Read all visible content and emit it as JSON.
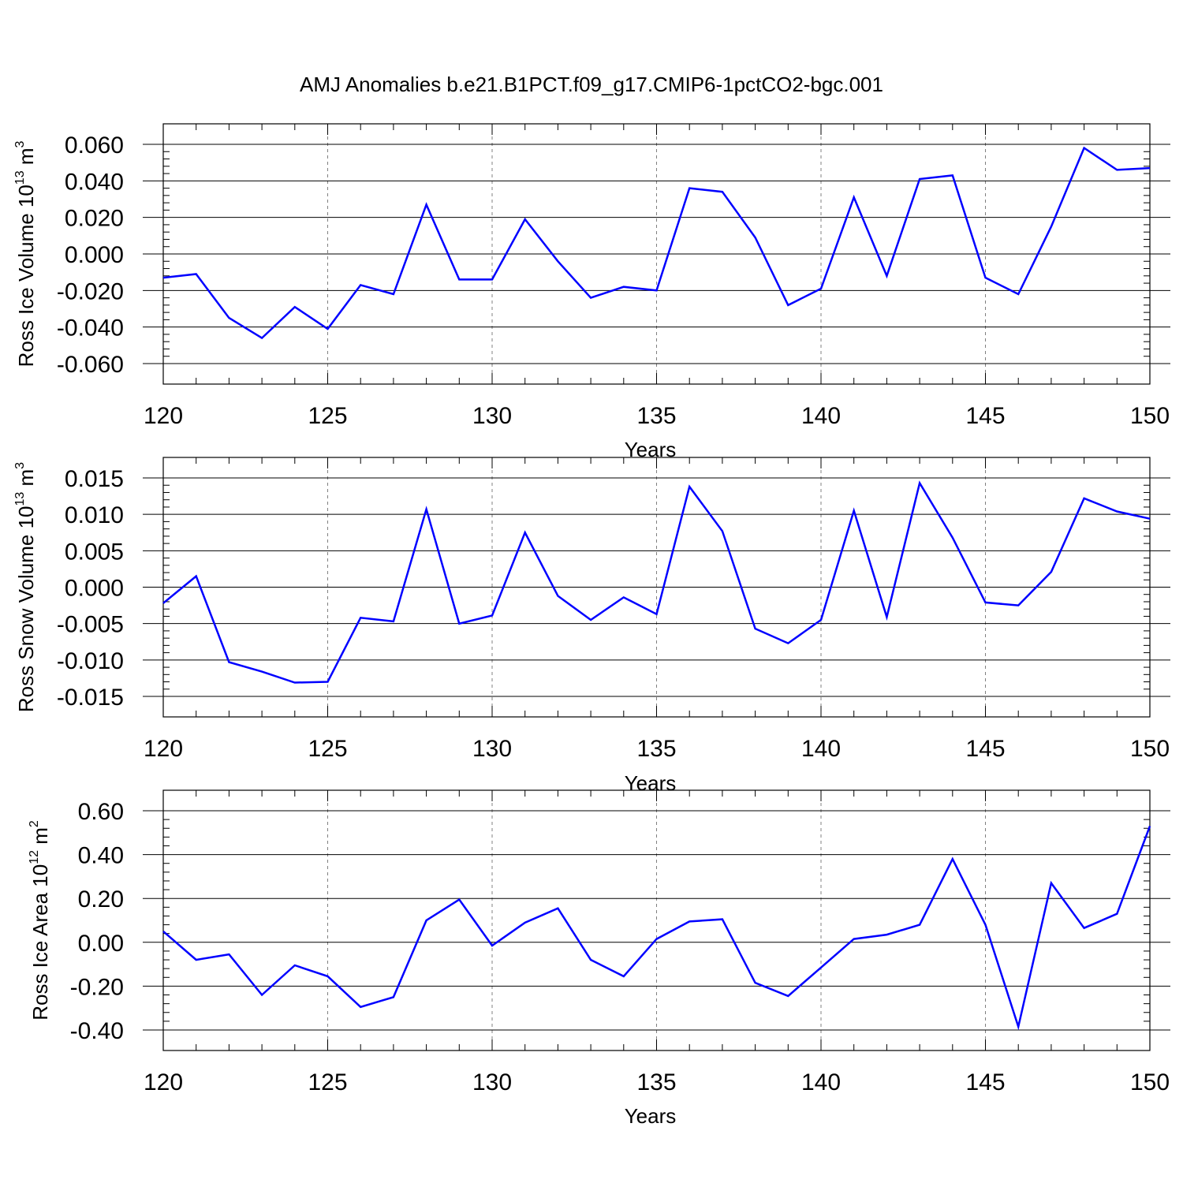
{
  "title": "AMJ Anomalies b.e21.B1PCT.f09_g17.CMIP6-1pctCO2-bgc.001",
  "colors": {
    "line": "#0000ff",
    "frame": "#000000",
    "grid": "#808080"
  },
  "chart_data": [
    {
      "type": "line",
      "ylabel_main": "Ross Ice Volume 10",
      "ylabel_exp": "13",
      "ylabel_unit": " m",
      "ylabel_unit_exp": "3",
      "xlabel": "Years",
      "xlim": [
        120,
        150
      ],
      "ylim": [
        -0.06,
        0.06
      ],
      "xticks": [
        120,
        125,
        130,
        135,
        140,
        145,
        150
      ],
      "xtick_labels": [
        "120",
        "125",
        "130",
        "135",
        "140",
        "145",
        "150"
      ],
      "yticks": [
        0.06,
        0.04,
        0.02,
        0.0,
        -0.02,
        -0.04,
        -0.06
      ],
      "ytick_labels": [
        "0.060",
        "0.040",
        "0.020",
        "0.000",
        "-0.020",
        "-0.040",
        "-0.060"
      ],
      "grid": "vertical dashed at major x ticks",
      "x": [
        120,
        121,
        122,
        123,
        124,
        125,
        126,
        127,
        128,
        129,
        130,
        131,
        132,
        133,
        134,
        135,
        136,
        137,
        138,
        139,
        140,
        141,
        142,
        143,
        144,
        145,
        146,
        147,
        148,
        149,
        150
      ],
      "y": [
        -0.013,
        -0.011,
        -0.035,
        -0.046,
        -0.029,
        -0.041,
        -0.017,
        -0.022,
        0.027,
        -0.014,
        -0.014,
        0.019,
        -0.004,
        -0.024,
        -0.018,
        -0.02,
        0.036,
        0.034,
        0.009,
        -0.028,
        -0.019,
        0.031,
        -0.012,
        0.041,
        0.043,
        -0.013,
        -0.022,
        0.015,
        0.058,
        0.046,
        0.047
      ]
    },
    {
      "type": "line",
      "ylabel_main": "Ross Snow Volume 10",
      "ylabel_exp": "13",
      "ylabel_unit": " m",
      "ylabel_unit_exp": "3",
      "xlabel": "Years",
      "xlim": [
        120,
        150
      ],
      "ylim": [
        -0.015,
        0.015
      ],
      "xticks": [
        120,
        125,
        130,
        135,
        140,
        145,
        150
      ],
      "xtick_labels": [
        "120",
        "125",
        "130",
        "135",
        "140",
        "145",
        "150"
      ],
      "yticks": [
        0.015,
        0.01,
        0.005,
        0.0,
        -0.005,
        -0.01,
        -0.015
      ],
      "ytick_labels": [
        "0.015",
        "0.010",
        "0.005",
        "0.000",
        "-0.005",
        "-0.010",
        "-0.015"
      ],
      "grid": "vertical dashed at major x ticks",
      "x": [
        120,
        121,
        122,
        123,
        124,
        125,
        126,
        127,
        128,
        129,
        130,
        131,
        132,
        133,
        134,
        135,
        136,
        137,
        138,
        139,
        140,
        141,
        142,
        143,
        144,
        145,
        146,
        147,
        148,
        149,
        150
      ],
      "y": [
        -0.0022,
        0.0015,
        -0.0103,
        -0.0116,
        -0.0131,
        -0.013,
        -0.0042,
        -0.0047,
        0.0107,
        -0.005,
        -0.0039,
        0.0075,
        -0.0012,
        -0.0045,
        -0.0014,
        -0.0037,
        0.0138,
        0.0077,
        -0.0057,
        -0.0077,
        -0.0045,
        0.0105,
        -0.0041,
        0.0143,
        0.0068,
        -0.0021,
        -0.0025,
        0.0021,
        0.0122,
        0.0104,
        0.0094
      ]
    },
    {
      "type": "line",
      "ylabel_main": "Ross Ice Area 10",
      "ylabel_exp": "12",
      "ylabel_unit": " m",
      "ylabel_unit_exp": "2",
      "xlabel": "Years",
      "xlim": [
        120,
        150
      ],
      "ylim": [
        -0.4,
        0.6
      ],
      "xticks": [
        120,
        125,
        130,
        135,
        140,
        145,
        150
      ],
      "xtick_labels": [
        "120",
        "125",
        "130",
        "135",
        "140",
        "145",
        "150"
      ],
      "yticks": [
        0.6,
        0.4,
        0.2,
        0.0,
        -0.2,
        -0.4
      ],
      "ytick_labels": [
        "0.60",
        "0.40",
        "0.20",
        "0.00",
        "-0.20",
        "-0.40"
      ],
      "grid": "vertical dashed at major x ticks",
      "x": [
        120,
        121,
        122,
        123,
        124,
        125,
        126,
        127,
        128,
        129,
        130,
        131,
        132,
        133,
        134,
        135,
        136,
        137,
        138,
        139,
        140,
        141,
        142,
        143,
        144,
        145,
        146,
        147,
        148,
        149,
        150
      ],
      "y": [
        0.05,
        -0.08,
        -0.055,
        -0.24,
        -0.105,
        -0.155,
        -0.295,
        -0.25,
        0.1,
        0.195,
        -0.015,
        0.09,
        0.155,
        -0.08,
        -0.155,
        0.015,
        0.095,
        0.105,
        -0.185,
        -0.245,
        -0.115,
        0.015,
        0.035,
        0.08,
        0.38,
        0.08,
        -0.385,
        0.27,
        0.065,
        0.13,
        0.53
      ]
    }
  ]
}
